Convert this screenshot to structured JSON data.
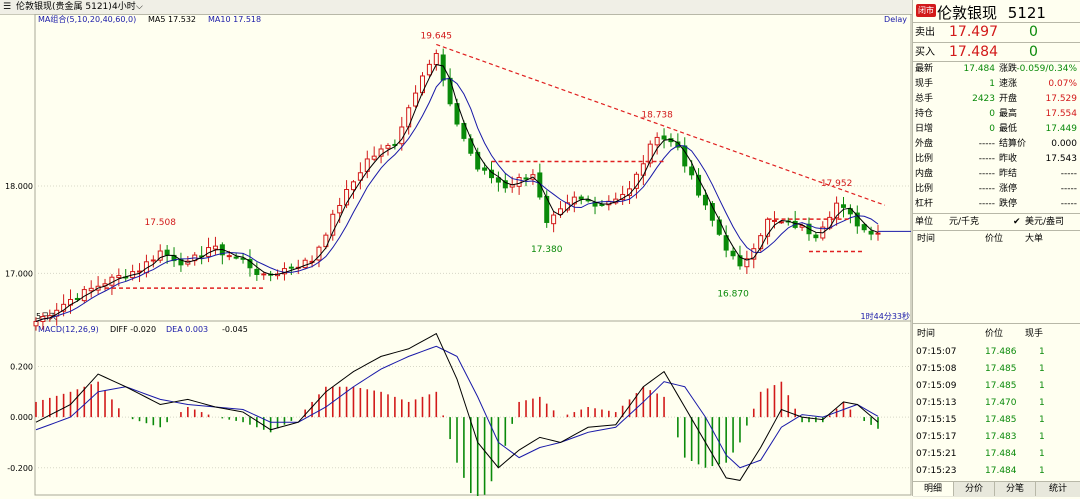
{
  "header": {
    "symbol_label": "伦敦银现(贵金属 5121)",
    "period": "4小时",
    "ma_label": "MA组合(5,10,20,40,60,0)",
    "ma5": "MA5 17.532",
    "ma10": "MA10 17.518",
    "delay": "Delay"
  },
  "macd_header": {
    "name": "MACD(12,26,9)",
    "diff": "DIFF -0.020",
    "dea": "DEA 0.003",
    "macd": "-0.045"
  },
  "bottom_left_label": "5日天",
  "countdown": "1时44分33秒",
  "colors": {
    "up": "#d21a1a",
    "down": "#0a8a0a",
    "ma5": "#000000",
    "ma10": "#1a1aa8",
    "trend": "#e02020"
  },
  "chart_data": [
    {
      "type": "candlestick",
      "ylim": [
        16.5,
        19.9
      ],
      "yticks": [
        "18.000",
        "17.000"
      ],
      "ytick_values": [
        18.0,
        17.0
      ],
      "annotations": [
        {
          "label": "19.645",
          "index": 58,
          "value": 19.645
        },
        {
          "label": "18.738",
          "index": 90,
          "value": 18.738
        },
        {
          "label": "17.508",
          "index": 18,
          "value": 17.508
        },
        {
          "label": "17.380",
          "index": 74,
          "value": 17.38
        },
        {
          "label": "16.870",
          "index": 101,
          "value": 16.87
        },
        {
          "label": "17.952",
          "index": 116,
          "value": 17.952
        }
      ],
      "anchors": [
        [
          0,
          16.45
        ],
        [
          5,
          16.7
        ],
        [
          10,
          16.9
        ],
        [
          15,
          17.05
        ],
        [
          18,
          17.25
        ],
        [
          22,
          17.1
        ],
        [
          25,
          17.3
        ],
        [
          30,
          17.15
        ],
        [
          33,
          16.95
        ],
        [
          36,
          17.05
        ],
        [
          40,
          17.15
        ],
        [
          44,
          17.8
        ],
        [
          48,
          18.3
        ],
        [
          52,
          18.5
        ],
        [
          56,
          19.3
        ],
        [
          58,
          19.5
        ],
        [
          60,
          18.9
        ],
        [
          64,
          18.2
        ],
        [
          68,
          18.0
        ],
        [
          72,
          18.15
        ],
        [
          74,
          17.55
        ],
        [
          78,
          17.85
        ],
        [
          82,
          17.8
        ],
        [
          86,
          17.95
        ],
        [
          90,
          18.6
        ],
        [
          93,
          18.45
        ],
        [
          96,
          17.9
        ],
        [
          100,
          17.3
        ],
        [
          102,
          17.05
        ],
        [
          106,
          17.6
        ],
        [
          110,
          17.55
        ],
        [
          113,
          17.45
        ],
        [
          116,
          17.8
        ],
        [
          120,
          17.5
        ],
        [
          122,
          17.48
        ]
      ]
    },
    {
      "type": "macd",
      "ylim": [
        -0.28,
        0.36
      ],
      "yticks": [
        "0.200",
        "0.000",
        "-0.200"
      ],
      "ytick_values": [
        0.2,
        0.0,
        -0.2
      ],
      "diff_anchors": [
        [
          0,
          -0.02
        ],
        [
          5,
          0.05
        ],
        [
          9,
          0.17
        ],
        [
          13,
          0.12
        ],
        [
          18,
          0.05
        ],
        [
          22,
          0.07
        ],
        [
          26,
          0.04
        ],
        [
          30,
          0.02
        ],
        [
          34,
          -0.05
        ],
        [
          38,
          -0.02
        ],
        [
          42,
          0.1
        ],
        [
          46,
          0.18
        ],
        [
          50,
          0.24
        ],
        [
          54,
          0.27
        ],
        [
          58,
          0.33
        ],
        [
          61,
          0.15
        ],
        [
          64,
          -0.1
        ],
        [
          67,
          -0.2
        ],
        [
          70,
          -0.13
        ],
        [
          73,
          -0.08
        ],
        [
          76,
          -0.1
        ],
        [
          80,
          -0.04
        ],
        [
          84,
          -0.03
        ],
        [
          88,
          0.12
        ],
        [
          91,
          0.18
        ],
        [
          94,
          0.04
        ],
        [
          97,
          -0.1
        ],
        [
          100,
          -0.24
        ],
        [
          102,
          -0.25
        ],
        [
          105,
          -0.12
        ],
        [
          108,
          0.03
        ],
        [
          111,
          0.0
        ],
        [
          114,
          -0.01
        ],
        [
          117,
          0.06
        ],
        [
          119,
          0.05
        ],
        [
          122,
          -0.02
        ]
      ],
      "dea_anchors": [
        [
          0,
          -0.05
        ],
        [
          5,
          0.0
        ],
        [
          9,
          0.1
        ],
        [
          13,
          0.12
        ],
        [
          18,
          0.07
        ],
        [
          22,
          0.05
        ],
        [
          26,
          0.04
        ],
        [
          30,
          0.03
        ],
        [
          34,
          -0.02
        ],
        [
          38,
          -0.02
        ],
        [
          42,
          0.04
        ],
        [
          46,
          0.12
        ],
        [
          50,
          0.19
        ],
        [
          54,
          0.24
        ],
        [
          58,
          0.28
        ],
        [
          61,
          0.24
        ],
        [
          64,
          0.08
        ],
        [
          67,
          -0.1
        ],
        [
          70,
          -0.16
        ],
        [
          73,
          -0.12
        ],
        [
          76,
          -0.1
        ],
        [
          80,
          -0.06
        ],
        [
          84,
          -0.04
        ],
        [
          88,
          0.06
        ],
        [
          91,
          0.14
        ],
        [
          94,
          0.12
        ],
        [
          97,
          0.0
        ],
        [
          100,
          -0.15
        ],
        [
          102,
          -0.2
        ],
        [
          105,
          -0.17
        ],
        [
          108,
          -0.04
        ],
        [
          111,
          0.01
        ],
        [
          114,
          0.0
        ],
        [
          117,
          0.03
        ],
        [
          119,
          0.05
        ],
        [
          122,
          0.003
        ]
      ]
    }
  ],
  "panel": {
    "title": "伦敦银现",
    "code": "5121",
    "badge": "闭市",
    "sell_label": "卖出",
    "sell_price": "17.497",
    "sell_vol": "0",
    "buy_label": "买入",
    "buy_price": "17.484",
    "buy_vol": "0",
    "stats": [
      {
        "l1": "最新",
        "v1": "17.484",
        "l2": "涨跌",
        "v2": "-0.059/0.34%"
      },
      {
        "l1": "现手",
        "v1": "1",
        "l2": "速涨",
        "v2": "0.07%"
      },
      {
        "l1": "总手",
        "v1": "2423",
        "l2": "开盘",
        "v2": "17.529"
      },
      {
        "l1": "持仓",
        "v1": "0",
        "l2": "最高",
        "v2": "17.554"
      },
      {
        "l1": "日增",
        "v1": "0",
        "l2": "最低",
        "v2": "17.449"
      },
      {
        "l1": "外盘",
        "v1": "-----",
        "l2": "结算价",
        "v2": "0.000"
      },
      {
        "l1": "比例",
        "v1": "-----",
        "l2": "昨收",
        "v2": "17.543"
      },
      {
        "l1": "内盘",
        "v1": "-----",
        "l2": "昨结",
        "v2": "-----"
      },
      {
        "l1": "比例",
        "v1": "-----",
        "l2": "涨停",
        "v2": "-----"
      },
      {
        "l1": "杠杆",
        "v1": "-----",
        "l2": "跌停",
        "v2": "-----"
      }
    ],
    "unit_label": "单位",
    "unit_value": "元/千克",
    "currency": "美元/盎司",
    "cols1": [
      "时间",
      "价位",
      "大单"
    ],
    "cols2": [
      "时间",
      "价位",
      "现手"
    ],
    "ticks": [
      [
        "07:15:07",
        "17.486",
        "1"
      ],
      [
        "07:15:08",
        "17.485",
        "1"
      ],
      [
        "07:15:09",
        "17.485",
        "1"
      ],
      [
        "07:15:13",
        "17.470",
        "1"
      ],
      [
        "07:15:15",
        "17.485",
        "1"
      ],
      [
        "07:15:17",
        "17.483",
        "1"
      ],
      [
        "07:15:21",
        "17.484",
        "1"
      ],
      [
        "07:15:23",
        "17.484",
        "1"
      ]
    ],
    "tabs": [
      "明细",
      "分价",
      "分笔",
      "统计"
    ]
  }
}
